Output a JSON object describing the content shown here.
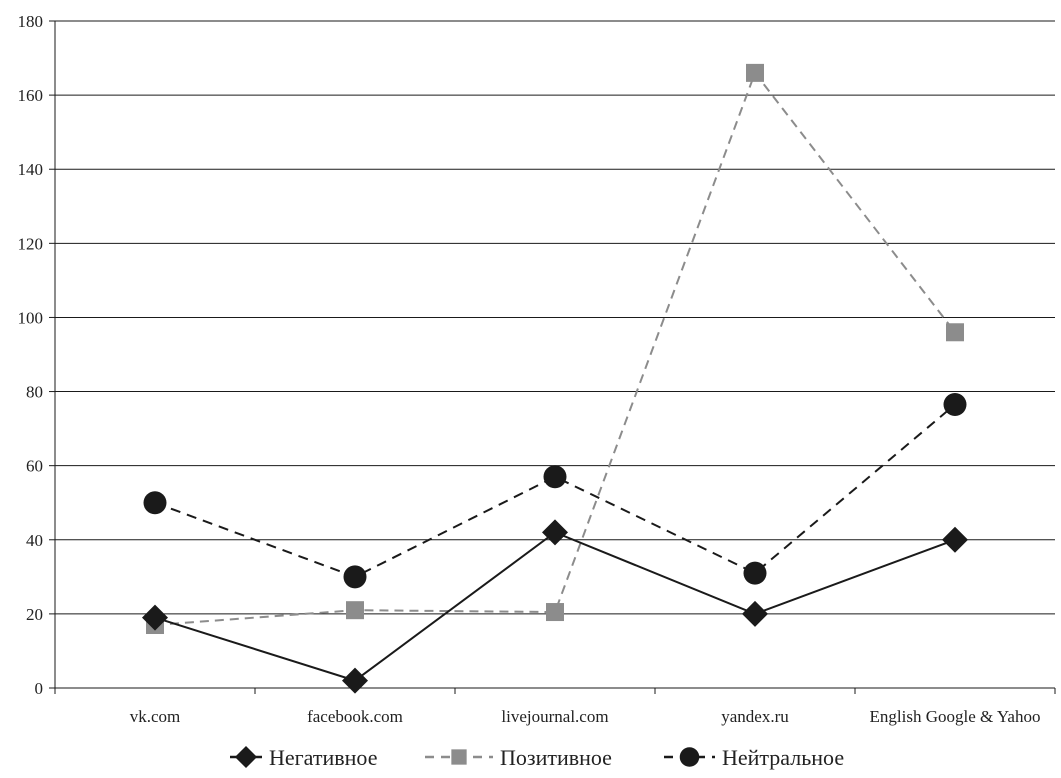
{
  "chart_data": {
    "type": "line",
    "title": "",
    "xlabel": "",
    "ylabel": "",
    "categories": [
      "vk.com",
      "facebook.com",
      "livejournal.com",
      "yandex.ru",
      "English Google & Yahoo"
    ],
    "ylim": [
      0,
      180
    ],
    "yticks": [
      0,
      20,
      40,
      60,
      80,
      100,
      120,
      140,
      160,
      180
    ],
    "grid": "horizontal",
    "legend_position": "bottom",
    "series": [
      {
        "name": "Негативное",
        "values": [
          19,
          2,
          42,
          20,
          40
        ],
        "color": "#1a1a1a",
        "dash": "solid",
        "marker": "diamond"
      },
      {
        "name": "Позитивное",
        "values": [
          17,
          21,
          20.5,
          166,
          96
        ],
        "color": "#8c8c8c",
        "dash": "dashed",
        "marker": "square"
      },
      {
        "name": "Нейтральное",
        "values": [
          50,
          30,
          57,
          31,
          76.5
        ],
        "color": "#1a1a1a",
        "dash": "dashed",
        "marker": "circle"
      }
    ]
  }
}
